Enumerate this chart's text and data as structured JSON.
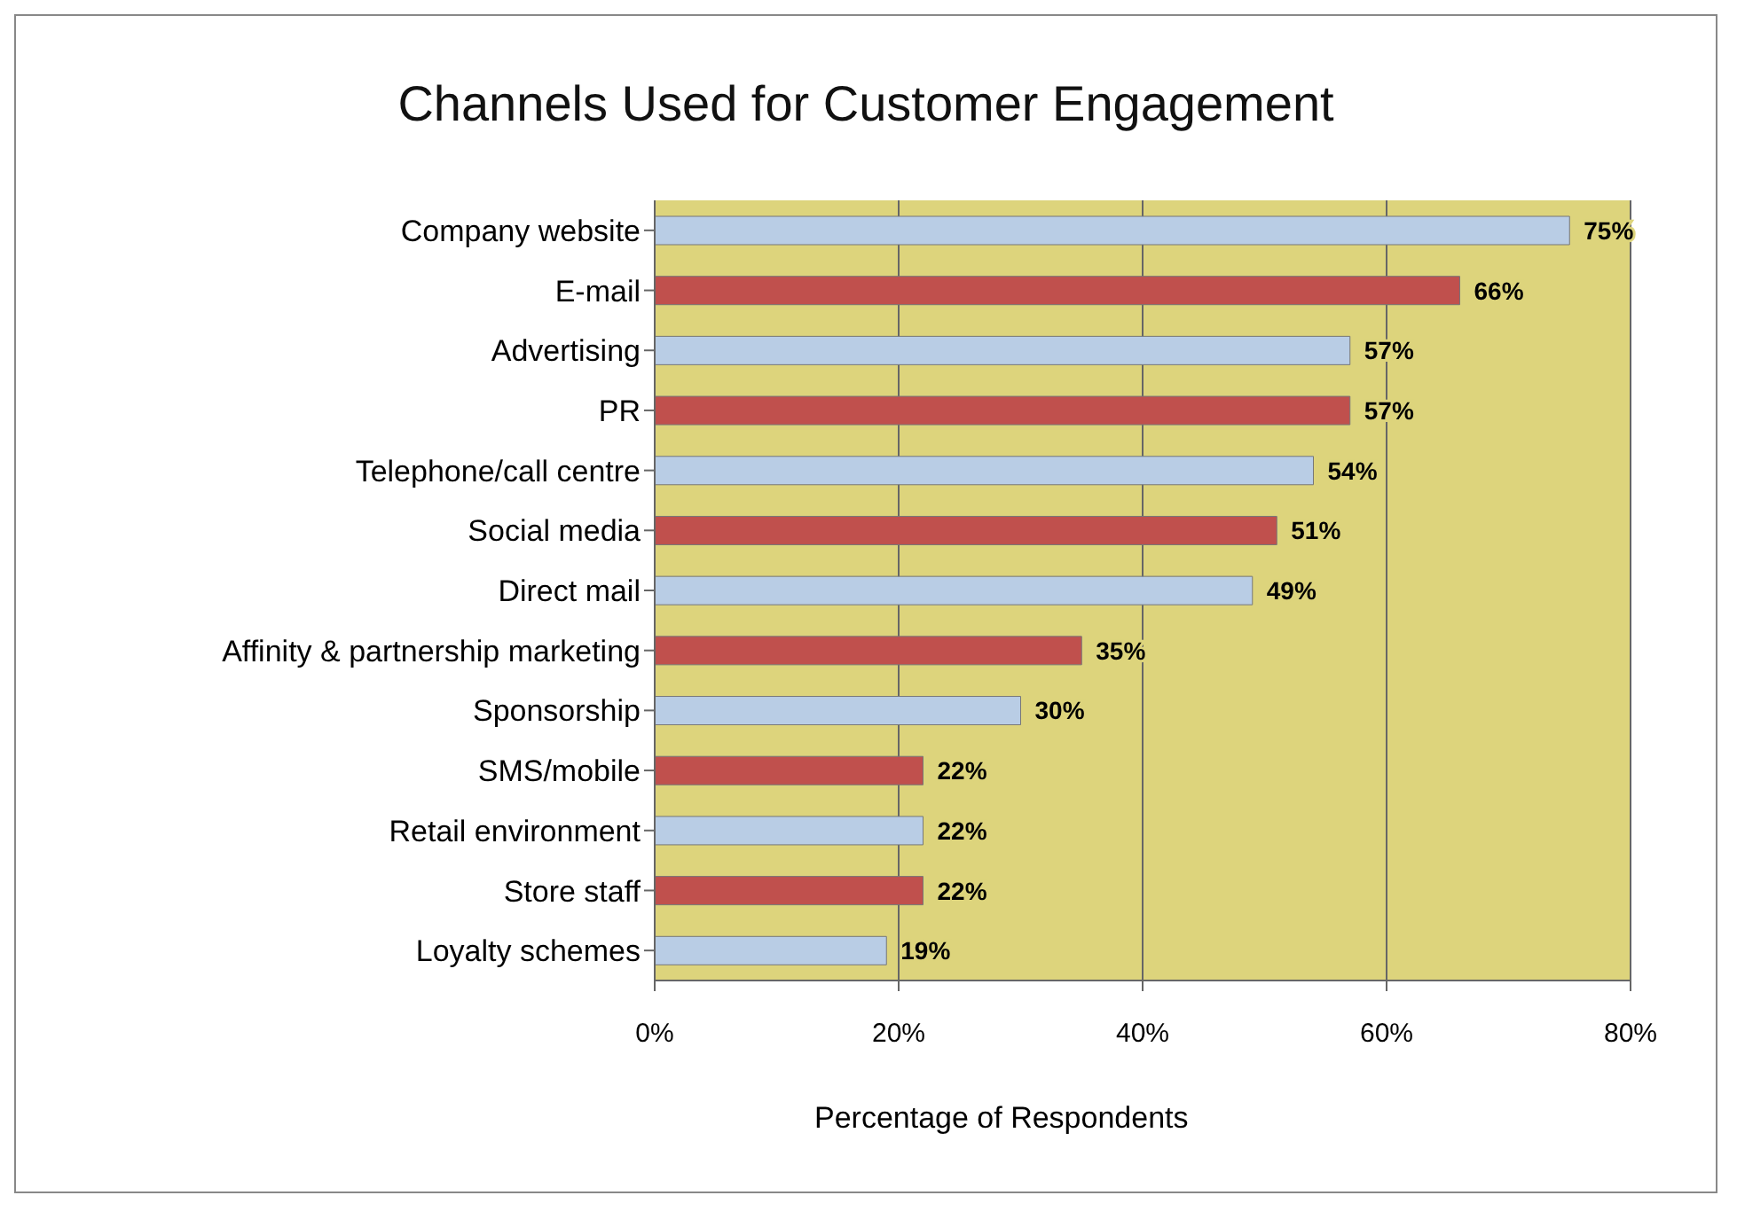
{
  "chart_data": {
    "type": "bar",
    "orientation": "horizontal",
    "title": "Channels Used for Customer Engagement",
    "xlabel": "Percentage of Respondents",
    "categories": [
      "Company website",
      "E-mail",
      "Advertising",
      "PR",
      "Telephone/call centre",
      "Social media",
      "Direct mail",
      "Affinity & partnership marketing",
      "Sponsorship",
      "SMS/mobile",
      "Retail environment",
      "Store staff",
      "Loyalty schemes"
    ],
    "values": [
      75,
      66,
      57,
      57,
      54,
      51,
      49,
      35,
      30,
      22,
      22,
      22,
      19
    ],
    "value_labels": [
      "75%",
      "66%",
      "57%",
      "57%",
      "54%",
      "51%",
      "49%",
      "35%",
      "30%",
      "22%",
      "22%",
      "22%",
      "19%"
    ],
    "colors": [
      "#b9cde5",
      "#c0504d",
      "#b9cde5",
      "#c0504d",
      "#b9cde5",
      "#c0504d",
      "#b9cde5",
      "#c0504d",
      "#b9cde5",
      "#c0504d",
      "#b9cde5",
      "#c0504d",
      "#b9cde5"
    ],
    "xlim": [
      0,
      80
    ],
    "xticks": [
      {
        "value": 0,
        "label": "0%"
      },
      {
        "value": 20,
        "label": "20%"
      },
      {
        "value": 40,
        "label": "40%"
      },
      {
        "value": 60,
        "label": "60%"
      },
      {
        "value": 80,
        "label": "80%"
      }
    ],
    "grid": "x",
    "legend": false
  }
}
